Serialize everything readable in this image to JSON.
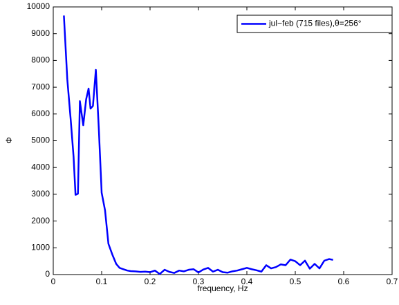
{
  "chart_data": {
    "type": "line",
    "xlabel": "frequency, Hz",
    "ylabel": "Φ",
    "x": [
      0.022,
      0.029,
      0.036,
      0.042,
      0.046,
      0.051,
      0.055,
      0.062,
      0.068,
      0.073,
      0.077,
      0.082,
      0.088,
      0.094,
      0.1,
      0.107,
      0.114,
      0.122,
      0.13,
      0.137,
      0.145,
      0.153,
      0.16,
      0.17,
      0.18,
      0.19,
      0.2,
      0.21,
      0.22,
      0.23,
      0.24,
      0.25,
      0.26,
      0.27,
      0.28,
      0.29,
      0.3,
      0.31,
      0.32,
      0.33,
      0.34,
      0.35,
      0.36,
      0.37,
      0.38,
      0.39,
      0.4,
      0.41,
      0.42,
      0.43,
      0.44,
      0.45,
      0.46,
      0.47,
      0.48,
      0.49,
      0.5,
      0.51,
      0.52,
      0.53,
      0.54,
      0.55,
      0.56,
      0.57,
      0.578
    ],
    "series": [
      {
        "name": "jul−feb (715 files),θ=256°",
        "color": "#0000ff",
        "values": [
          9680,
          7300,
          5800,
          4400,
          2980,
          3020,
          6480,
          5580,
          6550,
          6950,
          6200,
          6300,
          7650,
          5500,
          3060,
          2400,
          1150,
          750,
          400,
          250,
          200,
          150,
          130,
          120,
          100,
          110,
          90,
          150,
          20,
          180,
          100,
          60,
          150,
          120,
          180,
          200,
          80,
          190,
          250,
          110,
          180,
          90,
          70,
          120,
          150,
          200,
          250,
          200,
          160,
          110,
          350,
          230,
          280,
          380,
          350,
          560,
          500,
          350,
          520,
          220,
          400,
          230,
          520,
          580,
          550
        ]
      }
    ],
    "xlim": [
      0,
      0.7
    ],
    "ylim": [
      0,
      10000
    ],
    "xticks": [
      0,
      0.1,
      0.2,
      0.3,
      0.4,
      0.5,
      0.6,
      0.7
    ],
    "yticks": [
      0,
      1000,
      2000,
      3000,
      4000,
      5000,
      6000,
      7000,
      8000,
      9000,
      10000
    ],
    "legend": "upper right"
  }
}
